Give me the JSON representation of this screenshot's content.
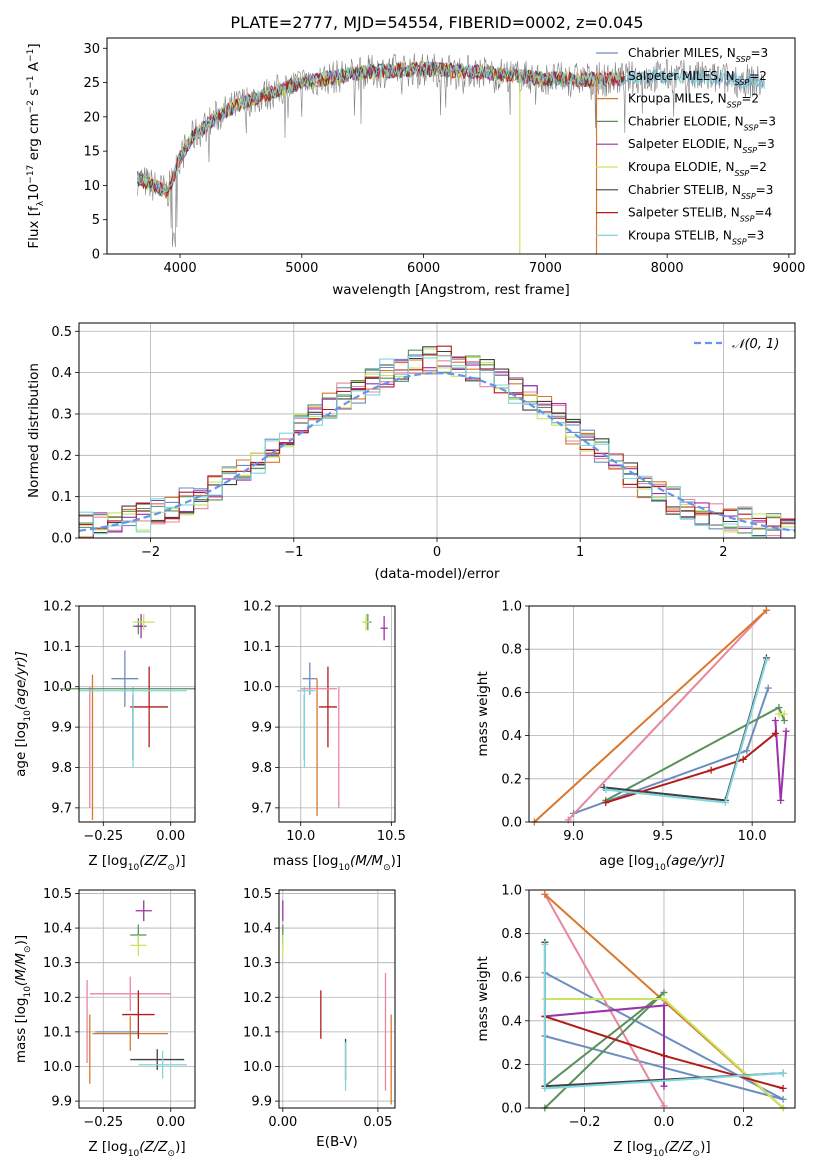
{
  "figure_title": "PLATE=2777, MJD=54554, FIBERID=0002, z=0.045",
  "colors": {
    "chabrier_miles": "#6c8ebf",
    "salpeter_miles": "#e8879c",
    "kroupa_miles": "#d9772b",
    "chabrier_elodie": "#5b8f5b",
    "salpeter_elodie": "#9b32a8",
    "kroupa_elodie": "#c7e65c",
    "chabrier_stelib": "#404040",
    "salpeter_stelib": "#b31b1b",
    "kroupa_stelib": "#7fd6de",
    "normal_curve": "#6495ed",
    "data_spectrum": "#808080"
  },
  "chart_data": [
    {
      "id": "spectrum",
      "type": "line",
      "title": "PLATE=2777, MJD=54554, FIBERID=0002, z=0.045",
      "xlabel": "wavelength [Angstrom, rest frame]",
      "ylabel": "Flux [f",
      "ylabel_parts": [
        "Flux [f",
        "λ",
        "10",
        "−17",
        " erg cm",
        "−2",
        " s",
        "−1",
        " A",
        "−1",
        "]"
      ],
      "xlim": [
        3400,
        9050
      ],
      "ylim": [
        0,
        31.5
      ],
      "xticks": [
        4000,
        5000,
        6000,
        7000,
        8000,
        9000
      ],
      "yticks": [
        0,
        5,
        10,
        15,
        20,
        25,
        30
      ],
      "grid": false,
      "legend_position": "top-right",
      "continuum": {
        "x": [
          3650,
          3900,
          4000,
          4100,
          4300,
          4500,
          5000,
          5500,
          6000,
          6500,
          7000,
          7500,
          8000,
          8500,
          8800
        ],
        "y": [
          11,
          9,
          14,
          17,
          20,
          22,
          25,
          26.5,
          27,
          26.5,
          25.5,
          25.5,
          26,
          25.5,
          25
        ]
      },
      "model_range": [
        3650,
        7650
      ],
      "data_range": [
        3650,
        8800
      ],
      "drops": [
        {
          "x": 6790,
          "series": "kroupa_elodie"
        },
        {
          "x": 7420,
          "series": "kroupa_miles"
        }
      ],
      "series": [
        {
          "key": "chabrier_miles",
          "label": "Chabrier MILES, N",
          "sub": "SSP",
          "n": "=3"
        },
        {
          "key": "salpeter_miles",
          "label": "Salpeter MILES, N",
          "sub": "SSP",
          "n": "=2"
        },
        {
          "key": "kroupa_miles",
          "label": "Kroupa MILES, N",
          "sub": "SSP",
          "n": "=2"
        },
        {
          "key": "chabrier_elodie",
          "label": "Chabrier ELODIE, N",
          "sub": "SSP",
          "n": "=3"
        },
        {
          "key": "salpeter_elodie",
          "label": "Salpeter ELODIE, N",
          "sub": "SSP",
          "n": "=3"
        },
        {
          "key": "kroupa_elodie",
          "label": "Kroupa ELODIE, N",
          "sub": "SSP",
          "n": "=2"
        },
        {
          "key": "chabrier_stelib",
          "label": "Chabrier STELIB, N",
          "sub": "SSP",
          "n": "=3"
        },
        {
          "key": "salpeter_stelib",
          "label": "Salpeter STELIB, N",
          "sub": "SSP",
          "n": "=4"
        },
        {
          "key": "kroupa_stelib",
          "label": "Kroupa STELIB, N",
          "sub": "SSP",
          "n": "=3"
        }
      ]
    },
    {
      "id": "residuals",
      "type": "step",
      "xlabel": "(data-model)/error",
      "ylabel": "Normed distribution",
      "xlim": [
        -2.5,
        2.5
      ],
      "ylim": [
        0,
        0.52
      ],
      "xticks": [
        -2,
        -1,
        0,
        1,
        2
      ],
      "xtick_labels": [
        "−2",
        "−1",
        "0",
        "1",
        "2"
      ],
      "yticks": [
        0.0,
        0.1,
        0.2,
        0.3,
        0.4,
        0.5
      ],
      "ytick_labels": [
        "0.0",
        "0.1",
        "0.2",
        "0.3",
        "0.4",
        "0.5"
      ],
      "grid": true,
      "bin_width": 0.1,
      "normal_label": "𝒩(0, 1)",
      "legend_position": "top-right",
      "hist_envelope": [
        0.03,
        0.035,
        0.04,
        0.045,
        0.05,
        0.06,
        0.07,
        0.09,
        0.1,
        0.12,
        0.14,
        0.16,
        0.19,
        0.21,
        0.24,
        0.27,
        0.3,
        0.32,
        0.34,
        0.36,
        0.38,
        0.4,
        0.41,
        0.42,
        0.43,
        0.43,
        0.42,
        0.41,
        0.4,
        0.38,
        0.36,
        0.34,
        0.31,
        0.29,
        0.26,
        0.23,
        0.21,
        0.18,
        0.15,
        0.13,
        0.11,
        0.09,
        0.075,
        0.06,
        0.05,
        0.045,
        0.04,
        0.035,
        0.03,
        0.025
      ]
    },
    {
      "id": "age_vs_Z",
      "type": "errorbar",
      "xlabel": "Z [log",
      "xlabel_parts": [
        "Z [log",
        "10",
        "(Z/Z",
        "⊙",
        ")]"
      ],
      "ylabel": "age  [log",
      "ylabel_parts": [
        "age  [log",
        "10",
        "(age/yr)]"
      ],
      "xlim": [
        -0.34,
        0.09
      ],
      "ylim": [
        9.665,
        10.2
      ],
      "xticks": [
        -0.25,
        0.0
      ],
      "xtick_labels": [
        "−0.25",
        "0.00"
      ],
      "yticks": [
        9.7,
        9.8,
        9.9,
        10.0,
        10.1,
        10.2
      ],
      "ytick_labels": [
        "9.7",
        "9.8",
        "9.9",
        "10.0",
        "10.1",
        "10.2"
      ],
      "grid": true,
      "points": [
        {
          "series": "chabrier_miles",
          "x": -0.17,
          "y": 10.02,
          "xerr": 0.05,
          "yerr": 0.07
        },
        {
          "series": "salpeter_miles",
          "x": -0.3,
          "y": 9.85,
          "xerr": 0.0,
          "yerr": 0.15
        },
        {
          "series": "kroupa_miles",
          "x": -0.29,
          "y": 9.85,
          "xerr": 0.0,
          "yerr": 0.18
        },
        {
          "series": "chabrier_elodie",
          "x": -0.12,
          "y": 10.15,
          "xerr": 0.02,
          "yerr": 0.02
        },
        {
          "series": "salpeter_elodie",
          "x": -0.11,
          "y": 10.15,
          "xerr": 0.02,
          "yerr": 0.03
        },
        {
          "series": "kroupa_elodie",
          "x": -0.1,
          "y": 10.16,
          "xerr": 0.04,
          "yerr": 0.02
        },
        {
          "series": "chabrier_stelib",
          "x": -0.14,
          "y": 9.9,
          "xerr": 0.0,
          "yerr": 0.08
        },
        {
          "series": "salpeter_stelib",
          "x": -0.08,
          "y": 9.95,
          "xerr": 0.07,
          "yerr": 0.1
        },
        {
          "series": "kroupa_stelib",
          "x": -0.14,
          "y": 9.9,
          "xerr": 0.0,
          "yerr": 0.1
        },
        {
          "series": "chabrier_elodie",
          "x": -0.16,
          "y": 9.995,
          "xerr": 0.25,
          "yerr": 0.0
        },
        {
          "series": "kroupa_stelib",
          "x": -0.14,
          "y": 9.99,
          "xerr": 0.2,
          "yerr": 0.0
        }
      ]
    },
    {
      "id": "age_vs_mass",
      "type": "errorbar",
      "xlabel": "mass [log",
      "xlabel_parts": [
        "mass [log",
        "10",
        "(M/M",
        "⊙",
        ")]"
      ],
      "xlim": [
        9.88,
        10.52
      ],
      "ylim": [
        9.665,
        10.2
      ],
      "xticks": [
        10.0,
        10.5
      ],
      "xtick_labels": [
        "10.0",
        "10.5"
      ],
      "yticks": [
        9.7,
        9.8,
        9.9,
        10.0,
        10.1,
        10.2
      ],
      "ytick_labels": [
        "9.7",
        "9.8",
        "9.9",
        "10.0",
        "10.1",
        "10.2"
      ],
      "grid": true,
      "points": [
        {
          "series": "chabrier_miles",
          "x": 10.05,
          "y": 10.02,
          "xerr": 0.04,
          "yerr": 0.04
        },
        {
          "series": "salpeter_miles",
          "x": 10.21,
          "y": 9.85,
          "xerr": 0.0,
          "yerr": 0.15
        },
        {
          "series": "kroupa_miles",
          "x": 10.09,
          "y": 9.85,
          "xerr": 0.0,
          "yerr": 0.17
        },
        {
          "series": "chabrier_elodie",
          "x": 10.37,
          "y": 10.16,
          "xerr": 0.02,
          "yerr": 0.02
        },
        {
          "series": "salpeter_elodie",
          "x": 10.46,
          "y": 10.145,
          "xerr": 0.02,
          "yerr": 0.03
        },
        {
          "series": "kroupa_elodie",
          "x": 10.36,
          "y": 10.16,
          "xerr": 0.02,
          "yerr": 0.02
        },
        {
          "series": "chabrier_stelib",
          "x": 10.02,
          "y": 9.9,
          "xerr": 0.0,
          "yerr": 0.08
        },
        {
          "series": "salpeter_stelib",
          "x": 10.15,
          "y": 9.95,
          "xerr": 0.05,
          "yerr": 0.1
        },
        {
          "series": "kroupa_stelib",
          "x": 10.02,
          "y": 9.9,
          "xerr": 0.0,
          "yerr": 0.1
        },
        {
          "series": "salpeter_miles",
          "x": 10.1,
          "y": 9.995,
          "xerr": 0.1,
          "yerr": 0.0
        },
        {
          "series": "kroupa_stelib",
          "x": 10.03,
          "y": 9.99,
          "xerr": 0.05,
          "yerr": 0.0
        }
      ]
    },
    {
      "id": "weight_vs_age",
      "type": "line",
      "xlabel": "age  [log",
      "xlabel_parts": [
        "age  [log",
        "10",
        "(age/yr)]"
      ],
      "ylabel": "mass weight",
      "xlim": [
        8.75,
        10.24
      ],
      "ylim": [
        0,
        1.0
      ],
      "xticks": [
        9.0,
        9.5,
        10.0
      ],
      "xtick_labels": [
        "9.0",
        "9.5",
        "10.0"
      ],
      "yticks": [
        0.0,
        0.2,
        0.4,
        0.6,
        0.8,
        1.0
      ],
      "ytick_labels": [
        "0.0",
        "0.2",
        "0.4",
        "0.6",
        "0.8",
        "1.0"
      ],
      "grid": true,
      "series": [
        {
          "key": "chabrier_miles",
          "x": [
            9.0,
            9.97,
            10.09
          ],
          "y": [
            0.04,
            0.33,
            0.62
          ]
        },
        {
          "key": "salpeter_miles",
          "x": [
            8.97,
            10.08
          ],
          "y": [
            0.01,
            0.98
          ]
        },
        {
          "key": "kroupa_miles",
          "x": [
            8.78,
            10.08
          ],
          "y": [
            0.0,
            0.98
          ]
        },
        {
          "key": "chabrier_elodie",
          "x": [
            9.18,
            10.15,
            10.18
          ],
          "y": [
            0.1,
            0.53,
            0.47
          ]
        },
        {
          "key": "salpeter_elodie",
          "x": [
            10.13,
            10.16,
            10.19
          ],
          "y": [
            0.47,
            0.1,
            0.42
          ]
        },
        {
          "key": "kroupa_elodie",
          "x": [
            10.15,
            10.18
          ],
          "y": [
            0.5,
            0.5
          ]
        },
        {
          "key": "chabrier_stelib",
          "x": [
            9.17,
            9.85,
            10.08
          ],
          "y": [
            0.16,
            0.1,
            0.76
          ]
        },
        {
          "key": "salpeter_stelib",
          "x": [
            9.18,
            9.77,
            9.95,
            10.13
          ],
          "y": [
            0.09,
            0.24,
            0.29,
            0.41
          ]
        },
        {
          "key": "kroupa_stelib",
          "x": [
            9.18,
            9.85,
            10.08
          ],
          "y": [
            0.15,
            0.09,
            0.75
          ]
        }
      ]
    },
    {
      "id": "mass_vs_Z",
      "type": "errorbar",
      "xlabel": "Z [log",
      "xlabel_parts": [
        "Z [log",
        "10",
        "(Z/Z",
        "⊙",
        ")]"
      ],
      "ylabel": "mass [log",
      "ylabel_parts": [
        "mass [log",
        "10",
        "(M/M",
        "⊙",
        ")]"
      ],
      "xlim": [
        -0.34,
        0.09
      ],
      "ylim": [
        9.88,
        10.51
      ],
      "xticks": [
        -0.25,
        0.0
      ],
      "xtick_labels": [
        "−0.25",
        "0.00"
      ],
      "yticks": [
        9.9,
        10.0,
        10.1,
        10.2,
        10.3,
        10.4,
        10.5
      ],
      "ytick_labels": [
        "9.9",
        "10.0",
        "10.1",
        "10.2",
        "10.3",
        "10.4",
        "10.5"
      ],
      "grid": true,
      "points": [
        {
          "series": "salpeter_miles",
          "x": -0.15,
          "y": 10.21,
          "xerr": 0.15,
          "yerr": 0.05
        },
        {
          "series": "kroupa_miles",
          "x": -0.15,
          "y": 10.095,
          "xerr": 0.14,
          "yerr": 0.05
        },
        {
          "series": "chabrier_miles",
          "x": -0.2,
          "y": 10.1,
          "xerr": 0.08,
          "yerr": 0.0
        },
        {
          "series": "chabrier_elodie",
          "x": -0.12,
          "y": 10.38,
          "xerr": 0.03,
          "yerr": 0.03
        },
        {
          "series": "salpeter_elodie",
          "x": -0.1,
          "y": 10.45,
          "xerr": 0.03,
          "yerr": 0.03
        },
        {
          "series": "kroupa_elodie",
          "x": -0.12,
          "y": 10.35,
          "xerr": 0.03,
          "yerr": 0.03
        },
        {
          "series": "chabrier_stelib",
          "x": -0.05,
          "y": 10.02,
          "xerr": 0.1,
          "yerr": 0.03
        },
        {
          "series": "salpeter_stelib",
          "x": -0.12,
          "y": 10.15,
          "xerr": 0.06,
          "yerr": 0.07
        },
        {
          "series": "kroupa_stelib",
          "x": -0.03,
          "y": 10.005,
          "xerr": 0.09,
          "yerr": 0.04
        },
        {
          "series": "kroupa_miles",
          "x": -0.3,
          "y": 10.05,
          "xerr": 0.0,
          "yerr": 0.1
        },
        {
          "series": "salpeter_miles",
          "x": -0.31,
          "y": 10.13,
          "xerr": 0.0,
          "yerr": 0.12
        }
      ]
    },
    {
      "id": "mass_vs_ebv",
      "type": "errorbar",
      "xlabel": "E(B-V)",
      "xlim": [
        -0.002,
        0.059
      ],
      "ylim": [
        9.88,
        10.51
      ],
      "xticks": [
        0.0,
        0.05
      ],
      "xtick_labels": [
        "0.00",
        "0.05"
      ],
      "yticks": [
        9.9,
        10.0,
        10.1,
        10.2,
        10.3,
        10.4,
        10.5
      ],
      "ytick_labels": [
        "9.9",
        "10.0",
        "10.1",
        "10.2",
        "10.3",
        "10.4",
        "10.5"
      ],
      "grid": true,
      "points": [
        {
          "series": "salpeter_elodie",
          "x": 0.0,
          "y": 10.45,
          "xerr": 0.0,
          "yerr": 0.03
        },
        {
          "series": "chabrier_elodie",
          "x": 0.0,
          "y": 10.38,
          "xerr": 0.0,
          "yerr": 0.03
        },
        {
          "series": "kroupa_elodie",
          "x": 0.0,
          "y": 10.35,
          "xerr": 0.0,
          "yerr": 0.03
        },
        {
          "series": "salpeter_stelib",
          "x": 0.02,
          "y": 10.15,
          "xerr": 0.0,
          "yerr": 0.07
        },
        {
          "series": "chabrier_stelib",
          "x": 0.033,
          "y": 10.02,
          "xerr": 0.0,
          "yerr": 0.06
        },
        {
          "series": "kroupa_stelib",
          "x": 0.033,
          "y": 10.0,
          "xerr": 0.0,
          "yerr": 0.07
        },
        {
          "series": "salpeter_miles",
          "x": 0.054,
          "y": 10.1,
          "xerr": 0.0,
          "yerr": 0.17
        },
        {
          "series": "kroupa_miles",
          "x": 0.057,
          "y": 10.02,
          "xerr": 0.0,
          "yerr": 0.13
        }
      ]
    },
    {
      "id": "weight_vs_Z",
      "type": "line",
      "xlabel": "Z [log",
      "xlabel_parts": [
        "Z [log",
        "10",
        "(Z/Z",
        "⊙",
        ")]"
      ],
      "ylabel": "mass weight",
      "xlim": [
        -0.34,
        0.33
      ],
      "ylim": [
        0,
        1.0
      ],
      "xticks": [
        -0.2,
        0.0,
        0.2
      ],
      "xtick_labels": [
        "−0.2",
        "0.0",
        "0.2"
      ],
      "yticks": [
        0.0,
        0.2,
        0.4,
        0.6,
        0.8,
        1.0
      ],
      "ytick_labels": [
        "0.0",
        "0.2",
        "0.4",
        "0.6",
        "0.8",
        "1.0"
      ],
      "grid": true,
      "series": [
        {
          "key": "chabrier_miles",
          "x": [
            -0.3,
            0.3,
            -0.3
          ],
          "y": [
            0.33,
            0.04,
            0.62
          ]
        },
        {
          "key": "salpeter_miles",
          "x": [
            -0.3,
            0.0
          ],
          "y": [
            0.98,
            0.01
          ]
        },
        {
          "key": "kroupa_miles",
          "x": [
            -0.3,
            0.3
          ],
          "y": [
            0.98,
            0.0
          ]
        },
        {
          "key": "chabrier_elodie",
          "x": [
            -0.3,
            0.0,
            -0.3
          ],
          "y": [
            0.0,
            0.53,
            0.1
          ]
        },
        {
          "key": "salpeter_elodie",
          "x": [
            -0.3,
            0.0,
            0.0
          ],
          "y": [
            0.42,
            0.47,
            0.1
          ]
        },
        {
          "key": "kroupa_elodie",
          "x": [
            -0.3,
            0.0,
            0.3
          ],
          "y": [
            0.5,
            0.5,
            0.0
          ]
        },
        {
          "key": "chabrier_stelib",
          "x": [
            -0.3,
            -0.3,
            0.3
          ],
          "y": [
            0.76,
            0.1,
            0.16
          ]
        },
        {
          "key": "salpeter_stelib",
          "x": [
            -0.3,
            0.0,
            0.3
          ],
          "y": [
            0.42,
            0.24,
            0.09
          ]
        },
        {
          "key": "kroupa_stelib",
          "x": [
            -0.3,
            -0.3,
            0.3
          ],
          "y": [
            0.75,
            0.09,
            0.16
          ]
        }
      ]
    }
  ]
}
